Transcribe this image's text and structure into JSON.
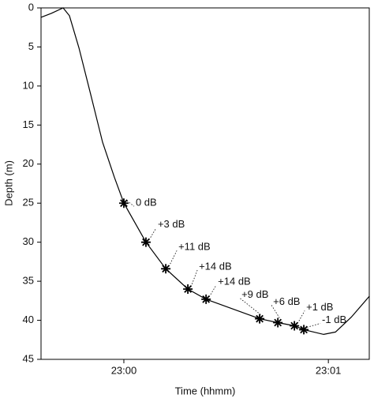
{
  "chart_data": {
    "type": "line",
    "xlabel": "Time (hhmm)",
    "ylabel": "Depth (m)",
    "x": [
      1379.595,
      1379.645,
      1379.703,
      1379.734,
      1379.78,
      1379.838,
      1379.896,
      1379.954,
      1380.0,
      1380.108,
      1380.205,
      1380.313,
      1380.402,
      1380.664,
      1380.753,
      1380.834,
      1380.88,
      1380.977,
      1381.035,
      1381.112,
      1381.201
    ],
    "series": [
      {
        "color": "#000000",
        "values": [
          1.2,
          0.7,
          0,
          1.0,
          5.1,
          11.1,
          17.2,
          21.7,
          25.0,
          30.0,
          33.4,
          36.0,
          37.3,
          39.8,
          40.3,
          40.7,
          41.2,
          41.8,
          41.5,
          39.6,
          36.9
        ]
      }
    ],
    "markers": {
      "x": [
        1380.0,
        1380.108,
        1380.205,
        1380.313,
        1380.402,
        1380.664,
        1380.753,
        1380.834,
        1380.88
      ],
      "values": [
        25.0,
        30.0,
        33.4,
        36.0,
        37.3,
        39.8,
        40.3,
        40.7,
        41.2
      ],
      "labels": [
        "0 dB",
        "+3 dB",
        "+11 dB",
        "+14 dB",
        "+14 dB",
        "+9 dB",
        "+6 dB",
        "+1 dB",
        "-1 dB"
      ]
    },
    "xlim": [
      1379.595,
      1381.2
    ],
    "xticks": [
      {
        "value": 1380,
        "label": "23:00"
      },
      {
        "value": 1381,
        "label": "23:01"
      }
    ],
    "ylim": [
      0,
      45
    ],
    "yaxis_inverted": true,
    "yticks": [
      0,
      5,
      10,
      15,
      20,
      25,
      30,
      35,
      40,
      45
    ]
  }
}
